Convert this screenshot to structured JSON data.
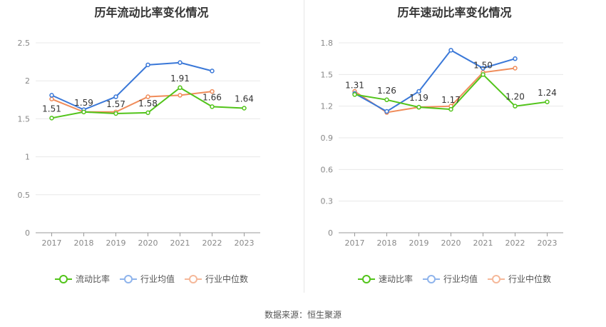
{
  "source": "数据来源：恒生聚源",
  "chart_data": [
    {
      "type": "line",
      "title": "历年流动比率变化情况",
      "categories": [
        "2017",
        "2018",
        "2019",
        "2020",
        "2021",
        "2022",
        "2023"
      ],
      "ylim": [
        0,
        2.5
      ],
      "yticks": [
        "0",
        "0.5",
        "1",
        "1.5",
        "2",
        "2.5"
      ],
      "grid": true,
      "legend_position": "bottom",
      "series": [
        {
          "name": "流动比率",
          "color": "#52c41a",
          "values": [
            1.51,
            1.59,
            1.57,
            1.58,
            1.91,
            1.66,
            1.64
          ],
          "labels": [
            "1.51",
            "1.59",
            "1.57",
            "1.58",
            "1.91",
            "1.66",
            "1.64"
          ]
        },
        {
          "name": "行业均值",
          "color": "#3a78d8",
          "values": [
            1.81,
            1.62,
            1.79,
            2.21,
            2.24,
            2.13,
            null
          ]
        },
        {
          "name": "行业中位数",
          "color": "#f08c5a",
          "values": [
            1.76,
            1.59,
            1.59,
            1.79,
            1.81,
            1.86,
            null
          ]
        }
      ]
    },
    {
      "type": "line",
      "title": "历年速动比率变化情况",
      "categories": [
        "2017",
        "2018",
        "2019",
        "2020",
        "2021",
        "2022",
        "2023"
      ],
      "ylim": [
        0,
        1.8
      ],
      "yticks": [
        "0",
        "0.3",
        "0.6",
        "0.9",
        "1.2",
        "1.5",
        "1.8"
      ],
      "grid": true,
      "legend_position": "bottom",
      "series": [
        {
          "name": "速动比率",
          "color": "#52c41a",
          "values": [
            1.31,
            1.26,
            1.19,
            1.17,
            1.5,
            1.2,
            1.24
          ],
          "labels": [
            "1.31",
            "1.26",
            "1.19",
            "1.17",
            "1.50",
            "1.20",
            "1.24"
          ]
        },
        {
          "name": "行业均值",
          "color": "#3a78d8",
          "values": [
            1.32,
            1.15,
            1.34,
            1.73,
            1.56,
            1.65,
            null
          ]
        },
        {
          "name": "行业中位数",
          "color": "#f08c5a",
          "values": [
            1.34,
            1.14,
            1.19,
            1.2,
            1.52,
            1.56,
            null
          ]
        }
      ]
    }
  ]
}
